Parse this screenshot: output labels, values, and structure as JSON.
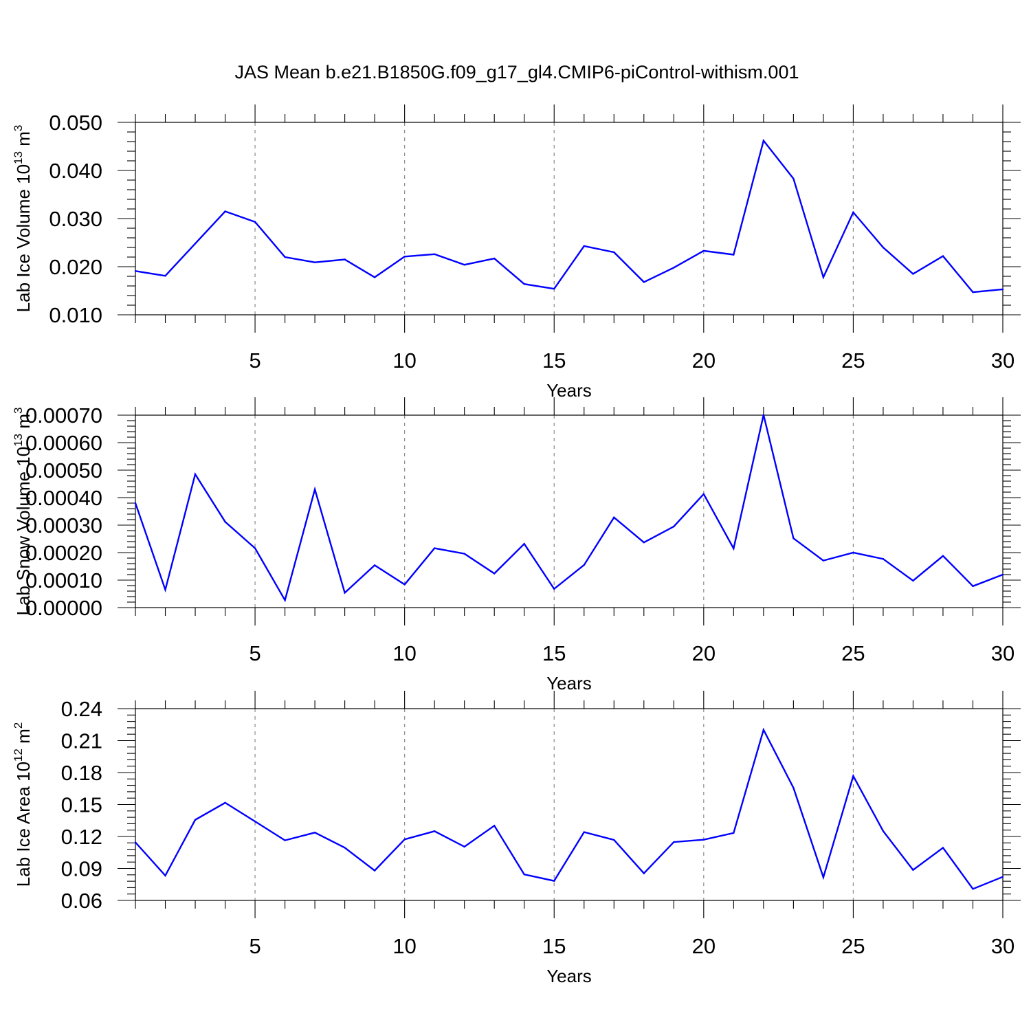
{
  "title": "JAS Mean b.e21.B1850G.f09_g17_gl4.CMIP6-piControl-withism.001",
  "colors": {
    "series": "#0000ff",
    "grid": "#8a8a8a",
    "axis": "#000000"
  },
  "chart_data": [
    {
      "type": "line",
      "ylabel": "Lab Ice Volume 10",
      "ylabel_exp": "13",
      "ylabel_unit": " m",
      "ylabel_unit_exp": "3",
      "xlabel": "Years",
      "xlim": [
        1,
        30
      ],
      "ylim": [
        0.01,
        0.05
      ],
      "xticks": [
        5,
        10,
        15,
        20,
        25,
        30
      ],
      "xtick_labels": [
        "5",
        "10",
        "15",
        "20",
        "25",
        "30"
      ],
      "yticks": [
        0.01,
        0.02,
        0.03,
        0.04,
        0.05
      ],
      "ytick_labels": [
        "0.010",
        "0.020",
        "0.030",
        "0.040",
        "0.050"
      ],
      "grid": "vertical-dashed",
      "x": [
        1,
        2,
        3,
        4,
        5,
        6,
        7,
        8,
        9,
        10,
        11,
        12,
        13,
        14,
        15,
        16,
        17,
        18,
        19,
        20,
        21,
        22,
        23,
        24,
        25,
        26,
        27,
        28,
        29,
        30
      ],
      "series": [
        {
          "values": [
            0.0191,
            0.0181,
            0.0248,
            0.0315,
            0.0293,
            0.022,
            0.0209,
            0.0215,
            0.0178,
            0.0221,
            0.0226,
            0.0204,
            0.0217,
            0.0164,
            0.0154,
            0.0243,
            0.023,
            0.0168,
            0.0198,
            0.0233,
            0.0225,
            0.0462,
            0.0383,
            0.0178,
            0.0313,
            0.024,
            0.0185,
            0.0222,
            0.0147,
            0.0153
          ]
        }
      ]
    },
    {
      "type": "line",
      "ylabel": "Lab Snow Volume 10",
      "ylabel_exp": "13",
      "ylabel_unit": " m",
      "ylabel_unit_exp": "3",
      "xlabel": "Years",
      "xlim": [
        1,
        30
      ],
      "ylim": [
        0.0,
        0.0007
      ],
      "xticks": [
        5,
        10,
        15,
        20,
        25,
        30
      ],
      "xtick_labels": [
        "5",
        "10",
        "15",
        "20",
        "25",
        "30"
      ],
      "yticks": [
        0.0,
        0.0001,
        0.0002,
        0.0003,
        0.0004,
        0.0005,
        0.0006,
        0.0007
      ],
      "ytick_labels": [
        "0.00000",
        "0.00010",
        "0.00020",
        "0.00030",
        "0.00040",
        "0.00050",
        "0.00060",
        "0.00070"
      ],
      "grid": "vertical-dashed",
      "x": [
        1,
        2,
        3,
        4,
        5,
        6,
        7,
        8,
        9,
        10,
        11,
        12,
        13,
        14,
        15,
        16,
        17,
        18,
        19,
        20,
        21,
        22,
        23,
        24,
        25,
        26,
        27,
        28,
        29,
        30
      ],
      "series": [
        {
          "values": [
            0.00038,
            6.5e-05,
            0.000485,
            0.000312,
            0.000216,
            2.7e-05,
            0.00043,
            5.4e-05,
            0.000154,
            8.4e-05,
            0.000216,
            0.000196,
            0.000124,
            0.000232,
            6.8e-05,
            0.000155,
            0.000328,
            0.000237,
            0.000295,
            0.000413,
            0.000215,
            0.000701,
            0.000252,
            0.000171,
            0.0002,
            0.000177,
            9.8e-05,
            0.000188,
            7.8e-05,
            0.00012
          ]
        }
      ]
    },
    {
      "type": "line",
      "ylabel": "Lab Ice Area 10",
      "ylabel_exp": "12",
      "ylabel_unit": " m",
      "ylabel_unit_exp": "2",
      "xlabel": "Years",
      "xlim": [
        1,
        30
      ],
      "ylim": [
        0.06,
        0.24
      ],
      "xticks": [
        5,
        10,
        15,
        20,
        25,
        30
      ],
      "xtick_labels": [
        "5",
        "10",
        "15",
        "20",
        "25",
        "30"
      ],
      "yticks": [
        0.06,
        0.09,
        0.12,
        0.15,
        0.18,
        0.21,
        0.24
      ],
      "ytick_labels": [
        "0.06",
        "0.09",
        "0.12",
        "0.15",
        "0.18",
        "0.21",
        "0.24"
      ],
      "grid": "vertical-dashed",
      "x": [
        1,
        2,
        3,
        4,
        5,
        6,
        7,
        8,
        9,
        10,
        11,
        12,
        13,
        14,
        15,
        16,
        17,
        18,
        19,
        20,
        21,
        22,
        23,
        24,
        25,
        26,
        27,
        28,
        29,
        30
      ],
      "series": [
        {
          "values": [
            0.1145,
            0.0833,
            0.1356,
            0.1517,
            0.1341,
            0.1164,
            0.1237,
            0.1095,
            0.088,
            0.1173,
            0.125,
            0.1104,
            0.1301,
            0.0844,
            0.0783,
            0.1241,
            0.1168,
            0.0854,
            0.1148,
            0.117,
            0.1233,
            0.2201,
            0.1657,
            0.0817,
            0.1768,
            0.1251,
            0.0886,
            0.1094,
            0.0708,
            0.0821
          ]
        }
      ]
    }
  ]
}
